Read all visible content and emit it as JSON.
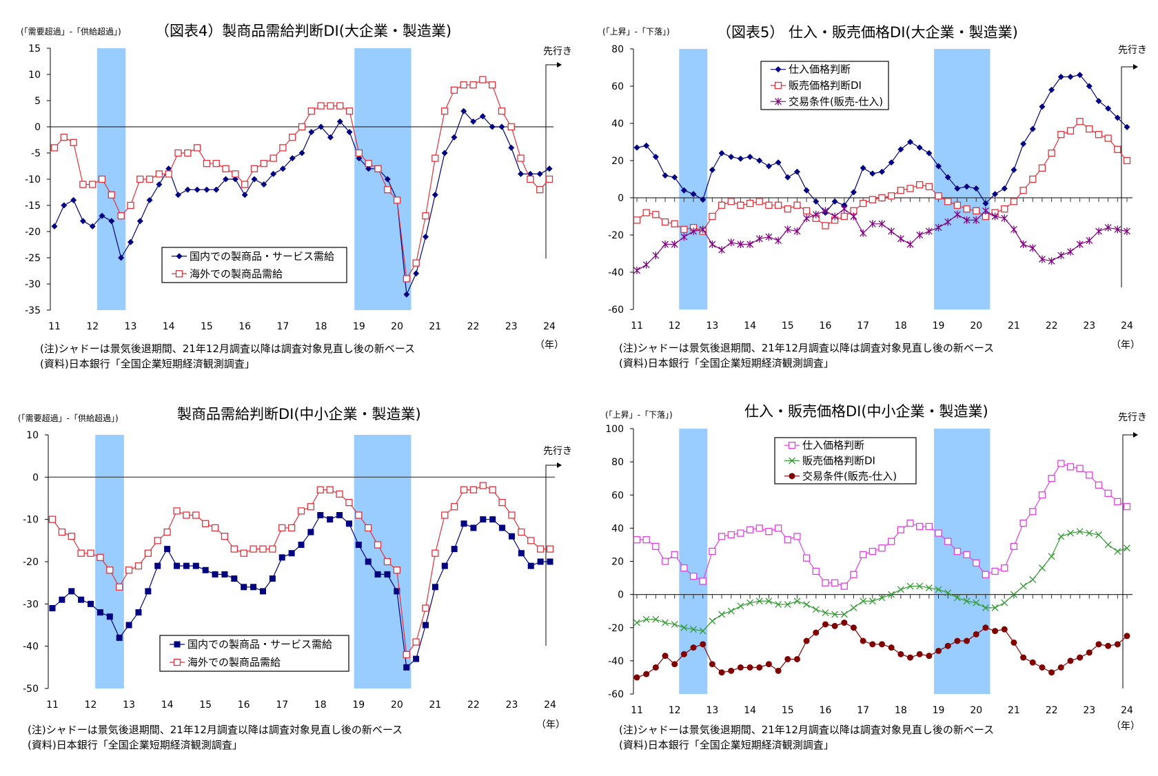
{
  "chart_data": [
    {
      "type": "line",
      "title": "（図表4）製商品需給判断DI(大企業・製造業)",
      "ylabel": "(「需要超過」-「供給超過」)",
      "xlabel": "（年）",
      "forecast_label": "先行き",
      "x_ticks": [
        "11",
        "12",
        "13",
        "14",
        "15",
        "16",
        "17",
        "18",
        "19",
        "20",
        "21",
        "22",
        "23",
        "24"
      ],
      "ylim": [
        -35,
        15
      ],
      "ystep": 5,
      "shaded_periods": [
        [
          12.12,
          12.87
        ],
        [
          18.88,
          20.37
        ]
      ],
      "legend_position": "bottom-center",
      "notes": [
        "(注)シャドーは景気後退期間、21年12月調査以降は調査対象見直し後の新ベース",
        "(資料)日本銀行「全国企業短期経済観測調査」"
      ],
      "series": [
        {
          "name": "国内での製商品・サービス需給",
          "color": "#000080",
          "marker": "diamond",
          "values": [
            -19,
            -15,
            -14,
            -18,
            -19,
            -17,
            -18,
            -25,
            -22,
            -18,
            -14,
            -11,
            -8,
            -13,
            -12,
            -12,
            -12,
            -12,
            -10,
            -10,
            -13,
            -10,
            -11,
            -9,
            -8,
            -6,
            -5,
            -1,
            0,
            -2,
            1,
            -1,
            -6,
            -8,
            -8,
            -10,
            -14,
            -32,
            -28,
            -21,
            -13,
            -5,
            -2,
            3,
            1,
            2,
            0,
            0,
            -4,
            -9,
            -9,
            -9,
            -8
          ]
        },
        {
          "name": "海外での製商品需給",
          "color": "#e0303a",
          "marker": "square-open",
          "values": [
            -4,
            -2,
            -3,
            -11,
            -11,
            -10,
            -13,
            -17,
            -15,
            -10,
            -10,
            -9,
            -9,
            -5,
            -5,
            -4,
            -7,
            -7,
            -8,
            -9,
            -11,
            -8,
            -7,
            -6,
            -4,
            -2,
            0,
            3,
            4,
            4,
            4,
            3,
            -5,
            -7,
            -8,
            -12,
            -14,
            -29,
            -26,
            -17,
            -6,
            3,
            7,
            8,
            8,
            9,
            8,
            3,
            0,
            -6,
            -10,
            -12,
            -10
          ]
        }
      ]
    },
    {
      "type": "line",
      "title": "（図表5） 仕入・販売価格DI(大企業・製造業)",
      "ylabel": "(「上昇」-「下落」)",
      "xlabel": "（年）",
      "forecast_label": "先行き",
      "x_ticks": [
        "11",
        "12",
        "13",
        "14",
        "15",
        "16",
        "17",
        "18",
        "19",
        "20",
        "21",
        "22",
        "23",
        "24"
      ],
      "ylim": [
        -60,
        80
      ],
      "ystep": 20,
      "shaded_periods": [
        [
          12.12,
          12.87
        ],
        [
          18.88,
          20.37
        ]
      ],
      "legend_position": "top-center",
      "notes": [
        "(注)シャドーは景気後退期間、21年12月調査以降は調査対象見直し後の新ベース",
        "(資料)日本銀行「全国企業短期経済観測調査」"
      ],
      "series": [
        {
          "name": "仕入価格判断",
          "color": "#000080",
          "marker": "diamond",
          "values": [
            27,
            28,
            22,
            12,
            11,
            4,
            2,
            -1,
            15,
            24,
            22,
            21,
            22,
            20,
            17,
            19,
            11,
            14,
            4,
            -2,
            -8,
            -2,
            -4,
            3,
            16,
            13,
            14,
            19,
            26,
            30,
            27,
            24,
            17,
            11,
            5,
            6,
            5,
            -3,
            2,
            5,
            15,
            29,
            37,
            49,
            58,
            65,
            65,
            66,
            60,
            52,
            48,
            43,
            38
          ]
        },
        {
          "name": "販売価格判断DI",
          "color": "#e0303a",
          "marker": "square-open",
          "values": [
            -12,
            -8,
            -9,
            -13,
            -14,
            -17,
            -16,
            -18,
            -10,
            -4,
            -2,
            -4,
            -3,
            -2,
            -4,
            -4,
            -6,
            -4,
            -7,
            -11,
            -15,
            -12,
            -10,
            -7,
            -3,
            -1,
            0,
            1,
            4,
            5,
            7,
            6,
            1,
            -2,
            -4,
            -6,
            -7,
            -10,
            -8,
            -6,
            -2,
            4,
            10,
            16,
            24,
            34,
            36,
            41,
            37,
            34,
            32,
            26,
            20
          ]
        },
        {
          "name": "交易条件(販売-仕入)",
          "color": "#800080",
          "marker": "star",
          "values": [
            -39,
            -36,
            -31,
            -25,
            -25,
            -21,
            -18,
            -17,
            -25,
            -28,
            -24,
            -25,
            -25,
            -22,
            -21,
            -23,
            -17,
            -18,
            -11,
            -9,
            -7,
            -10,
            -6,
            -10,
            -19,
            -14,
            -14,
            -18,
            -22,
            -25,
            -20,
            -18,
            -16,
            -13,
            -9,
            -12,
            -12,
            -7,
            -10,
            -11,
            -17,
            -25,
            -27,
            -33,
            -34,
            -31,
            -29,
            -25,
            -23,
            -18,
            -16,
            -17,
            -18
          ]
        }
      ]
    },
    {
      "type": "line",
      "title": "製商品需給判断DI(中小企業・製造業)",
      "ylabel": "(「需要超過」-「供給超過」)",
      "xlabel": "（年）",
      "forecast_label": "先行き",
      "x_ticks": [
        "11",
        "12",
        "13",
        "14",
        "15",
        "16",
        "17",
        "18",
        "19",
        "20",
        "21",
        "22",
        "23",
        "24"
      ],
      "ylim": [
        -50,
        10
      ],
      "ystep": 10,
      "shaded_periods": [
        [
          12.12,
          12.87
        ],
        [
          18.88,
          20.37
        ]
      ],
      "legend_position": "bottom-center",
      "notes": [
        "(注)シャドーは景気後退期間、21年12月調査以降は調査対象見直し後の新ベース",
        "(資料)日本銀行「全国企業短期経済観測調査」"
      ],
      "series": [
        {
          "name": "国内での製商品・サービス需給",
          "color": "#000080",
          "marker": "square-filled",
          "values": [
            -31,
            -29,
            -27,
            -29,
            -30,
            -32,
            -33,
            -38,
            -35,
            -32,
            -27,
            -21,
            -17,
            -21,
            -21,
            -21,
            -22,
            -23,
            -23,
            -24,
            -26,
            -26,
            -27,
            -24,
            -19,
            -18,
            -16,
            -13,
            -9,
            -10,
            -9,
            -11,
            -16,
            -20,
            -23,
            -23,
            -27,
            -45,
            -43,
            -35,
            -26,
            -21,
            -17,
            -11,
            -12,
            -10,
            -10,
            -12,
            -14,
            -18,
            -21,
            -20,
            -20
          ]
        },
        {
          "name": "海外での製商品需給",
          "color": "#e0303a",
          "marker": "square-open",
          "values": [
            -10,
            -13,
            -14,
            -18,
            -18,
            -19,
            -22,
            -26,
            -22,
            -21,
            -18,
            -15,
            -13,
            -8,
            -9,
            -9,
            -11,
            -12,
            -14,
            -17,
            -18,
            -17,
            -17,
            -17,
            -12,
            -12,
            -8,
            -7,
            -3,
            -3,
            -4,
            -6,
            -9,
            -12,
            -16,
            -20,
            -22,
            -42,
            -39,
            -31,
            -18,
            -9,
            -7,
            -3,
            -3,
            -2,
            -3,
            -6,
            -9,
            -13,
            -15,
            -17,
            -17
          ]
        }
      ]
    },
    {
      "type": "line",
      "title": "仕入・販売価格DI(中小企業・製造業)",
      "ylabel": "(「上昇」-「下落」)",
      "xlabel": "（年）",
      "forecast_label": "先行き",
      "x_ticks": [
        "11",
        "12",
        "13",
        "14",
        "15",
        "16",
        "17",
        "18",
        "19",
        "20",
        "21",
        "22",
        "23",
        "24"
      ],
      "ylim": [
        -60,
        100
      ],
      "ystep": 20,
      "shaded_periods": [
        [
          12.12,
          12.87
        ],
        [
          18.88,
          20.37
        ]
      ],
      "legend_position": "top-center",
      "notes": [
        "(注)シャドーは景気後退期間、21年12月調査以降は調査対象見直し後の新ベース",
        "(資料)日本銀行「全国企業短期経済観測調査」"
      ],
      "series": [
        {
          "name": "仕入価格判断",
          "color": "#e040e0",
          "marker": "square-open",
          "values": [
            33,
            33,
            29,
            20,
            24,
            16,
            11,
            8,
            26,
            35,
            36,
            37,
            39,
            40,
            38,
            40,
            33,
            35,
            22,
            14,
            7,
            7,
            5,
            12,
            24,
            26,
            28,
            32,
            39,
            43,
            41,
            41,
            37,
            32,
            26,
            24,
            19,
            12,
            14,
            16,
            29,
            43,
            50,
            60,
            70,
            79,
            77,
            76,
            72,
            66,
            61,
            56,
            53
          ]
        },
        {
          "name": "販売価格判断DI",
          "color": "#339933",
          "marker": "x",
          "values": [
            -17,
            -15,
            -15,
            -17,
            -18,
            -20,
            -21,
            -22,
            -16,
            -12,
            -10,
            -7,
            -5,
            -4,
            -4,
            -6,
            -6,
            -4,
            -6,
            -9,
            -11,
            -12,
            -12,
            -8,
            -4,
            -4,
            -2,
            0,
            3,
            5,
            5,
            4,
            3,
            1,
            -2,
            -4,
            -5,
            -8,
            -8,
            -5,
            0,
            5,
            9,
            16,
            23,
            35,
            37,
            38,
            37,
            36,
            30,
            26,
            28
          ]
        },
        {
          "name": "交易条件(販売-仕入)",
          "color": "#800000",
          "marker": "circle-filled",
          "values": [
            -50,
            -48,
            -44,
            -37,
            -42,
            -36,
            -32,
            -30,
            -42,
            -47,
            -46,
            -44,
            -44,
            -44,
            -42,
            -46,
            -39,
            -39,
            -28,
            -23,
            -18,
            -19,
            -17,
            -20,
            -28,
            -30,
            -30,
            -32,
            -36,
            -38,
            -36,
            -37,
            -34,
            -31,
            -28,
            -28,
            -24,
            -20,
            -22,
            -21,
            -29,
            -38,
            -41,
            -44,
            -47,
            -44,
            -40,
            -38,
            -35,
            -30,
            -31,
            -30,
            -25
          ]
        }
      ]
    }
  ]
}
